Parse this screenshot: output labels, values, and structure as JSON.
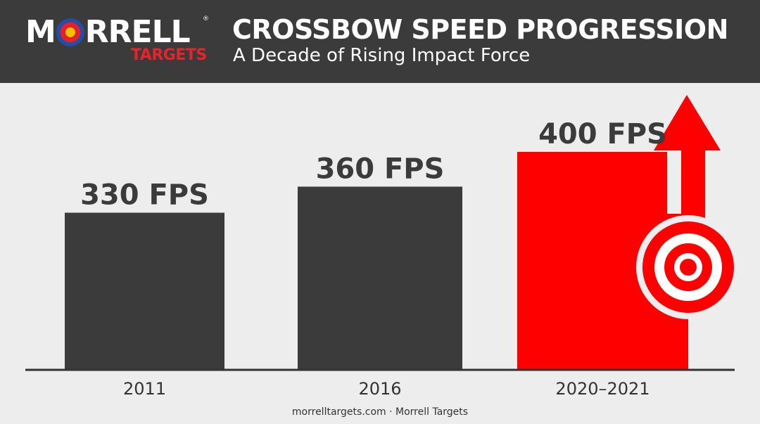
{
  "header": {
    "title": "CROSSBOW SPEED PROGRESSION",
    "subtitle": "A Decade of Rising Impact Force",
    "logo": {
      "word": "MORRELL",
      "sub": "TARGETS",
      "reg": "®"
    }
  },
  "footer": {
    "site": "morrelltargets.com",
    "sep": " · ",
    "brand": "Morrell Targets"
  },
  "colors": {
    "dark": "#3b3b3b",
    "accent": "#ff0000",
    "background": "#ededed"
  },
  "icons": [
    "bullseye-target-icon",
    "up-arrow-icon"
  ],
  "chart_data": {
    "type": "bar",
    "title": "CROSSBOW SPEED PROGRESSION",
    "subtitle": "A Decade of Rising Impact Force",
    "categories": [
      "2011",
      "2016",
      "2020–2021"
    ],
    "values": [
      330,
      360,
      400
    ],
    "data_labels": [
      "330 FPS",
      "360 FPS",
      "400 FPS"
    ],
    "unit": "FPS",
    "ylim": [
      150,
      400
    ],
    "highlight_index": 2,
    "grid": false,
    "legend": "none"
  }
}
